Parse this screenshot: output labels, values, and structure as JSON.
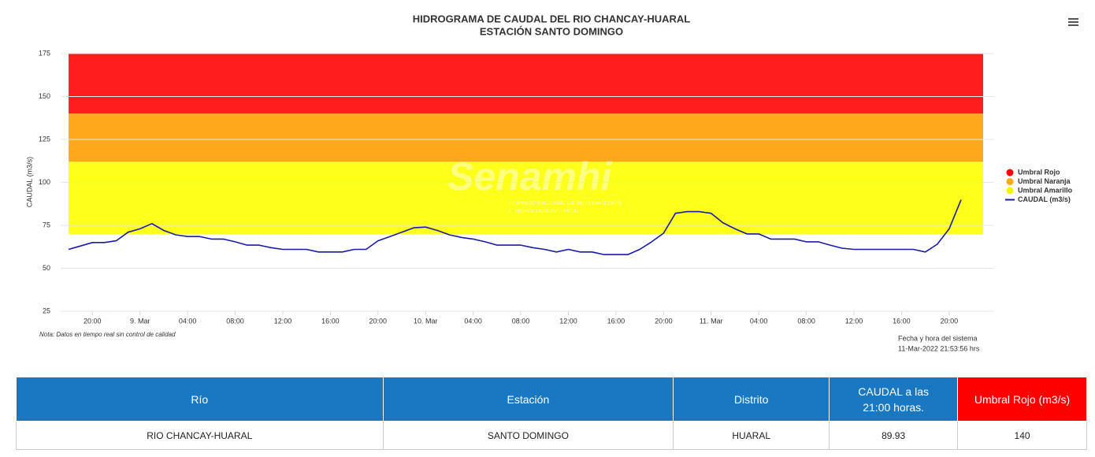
{
  "chart_data": {
    "type": "line",
    "title": "HIDROGRAMA DE CAUDAL DEL RIO CHANCAY-HUARAL",
    "subtitle": "ESTACIÓN SANTO DOMINGO",
    "y_label": "CAUDAL (m3/s)",
    "watermark": "Senamhi",
    "watermark_subtitle": [
      "SERVICIO NACIONAL DE METEOROLOGÍA",
      "E HIDROLOGÍA DEL PERÚ"
    ],
    "note": "Nota: Datos en tiempo real sin control de calidad",
    "system_time": [
      "Fecha y hora del sistema",
      "11-Mar-2022 21:53:56 hrs"
    ],
    "ylim": [
      25,
      175
    ],
    "yticks": [
      25,
      50,
      75,
      100,
      125,
      150,
      175
    ],
    "grid": true,
    "xlim": [
      "2022-03-08T17:20",
      "2022-03-11T23:47"
    ],
    "xticks": [
      {
        "value": "2022-03-08T20:00",
        "label": "20:00"
      },
      {
        "value": "2022-03-09T00:00",
        "label": "9. Mar"
      },
      {
        "value": "2022-03-09T04:00",
        "label": "04:00"
      },
      {
        "value": "2022-03-09T08:00",
        "label": "08:00"
      },
      {
        "value": "2022-03-09T12:00",
        "label": "12:00"
      },
      {
        "value": "2022-03-09T16:00",
        "label": "16:00"
      },
      {
        "value": "2022-03-09T20:00",
        "label": "20:00"
      },
      {
        "value": "2022-03-10T00:00",
        "label": "10. Mar"
      },
      {
        "value": "2022-03-10T04:00",
        "label": "04:00"
      },
      {
        "value": "2022-03-10T08:00",
        "label": "08:00"
      },
      {
        "value": "2022-03-10T12:00",
        "label": "12:00"
      },
      {
        "value": "2022-03-10T16:00",
        "label": "16:00"
      },
      {
        "value": "2022-03-10T20:00",
        "label": "20:00"
      },
      {
        "value": "2022-03-11T00:00",
        "label": "11. Mar"
      },
      {
        "value": "2022-03-11T04:00",
        "label": "04:00"
      },
      {
        "value": "2022-03-11T08:00",
        "label": "08:00"
      },
      {
        "value": "2022-03-11T12:00",
        "label": "12:00"
      },
      {
        "value": "2022-03-11T16:00",
        "label": "16:00"
      },
      {
        "value": "2022-03-11T20:00",
        "label": "20:00"
      }
    ],
    "thresholds": [
      {
        "name": "Umbral Rojo",
        "color": "#ff1c1c",
        "value": 140
      },
      {
        "name": "Umbral Naranja",
        "color": "#ffa81c",
        "value": 112
      },
      {
        "name": "Umbral Amarillo",
        "color": "#ffff1c",
        "value": 70
      }
    ],
    "x": [
      "2022-03-08T18:00",
      "2022-03-08T19:00",
      "2022-03-08T20:00",
      "2022-03-08T21:00",
      "2022-03-08T22:00",
      "2022-03-08T23:00",
      "2022-03-09T00:00",
      "2022-03-09T01:00",
      "2022-03-09T02:00",
      "2022-03-09T03:00",
      "2022-03-09T04:00",
      "2022-03-09T05:00",
      "2022-03-09T06:00",
      "2022-03-09T07:00",
      "2022-03-09T08:00",
      "2022-03-09T09:00",
      "2022-03-09T10:00",
      "2022-03-09T11:00",
      "2022-03-09T12:00",
      "2022-03-09T13:00",
      "2022-03-09T14:00",
      "2022-03-09T15:00",
      "2022-03-09T16:00",
      "2022-03-09T17:00",
      "2022-03-09T18:00",
      "2022-03-09T19:00",
      "2022-03-09T20:00",
      "2022-03-09T21:00",
      "2022-03-09T22:00",
      "2022-03-09T23:00",
      "2022-03-10T00:00",
      "2022-03-10T01:00",
      "2022-03-10T02:00",
      "2022-03-10T03:00",
      "2022-03-10T04:00",
      "2022-03-10T05:00",
      "2022-03-10T06:00",
      "2022-03-10T07:00",
      "2022-03-10T08:00",
      "2022-03-10T09:00",
      "2022-03-10T10:00",
      "2022-03-10T11:00",
      "2022-03-10T12:00",
      "2022-03-10T13:00",
      "2022-03-10T14:00",
      "2022-03-10T15:00",
      "2022-03-10T16:00",
      "2022-03-10T17:00",
      "2022-03-10T18:00",
      "2022-03-10T19:00",
      "2022-03-10T20:00",
      "2022-03-10T21:00",
      "2022-03-10T22:00",
      "2022-03-10T23:00",
      "2022-03-11T00:00",
      "2022-03-11T01:00",
      "2022-03-11T02:00",
      "2022-03-11T03:00",
      "2022-03-11T04:00",
      "2022-03-11T05:00",
      "2022-03-11T06:00",
      "2022-03-11T07:00",
      "2022-03-11T08:00",
      "2022-03-11T09:00",
      "2022-03-11T10:00",
      "2022-03-11T11:00",
      "2022-03-11T12:00",
      "2022-03-11T13:00",
      "2022-03-11T14:00",
      "2022-03-11T15:00",
      "2022-03-11T16:00",
      "2022-03-11T17:00",
      "2022-03-11T18:00",
      "2022-03-11T19:00",
      "2022-03-11T20:00",
      "2022-03-11T21:00"
    ],
    "series": [
      {
        "name": "CAUDAL (m3/s)",
        "color": "#1a1aa8",
        "values": [
          61,
          63,
          65,
          65,
          66,
          71,
          73,
          76,
          72,
          69.5,
          68.5,
          68.5,
          67,
          67,
          65.4,
          63.5,
          63.5,
          62,
          61,
          61,
          61,
          59.5,
          59.5,
          59.5,
          61,
          61,
          66,
          68.5,
          71,
          73.6,
          74,
          72,
          69.5,
          68,
          67,
          65.4,
          63.5,
          63.5,
          63.5,
          62,
          61,
          59.5,
          61,
          59.5,
          59.5,
          58,
          58,
          58,
          61,
          65.4,
          70.4,
          82,
          83,
          83,
          82,
          76.4,
          73,
          70,
          70,
          67,
          67,
          67,
          65.4,
          65.4,
          63.5,
          61.7,
          61,
          61,
          61,
          61,
          61,
          61,
          59.5,
          64,
          73,
          89.93
        ]
      }
    ]
  },
  "table": {
    "header": [
      "Río",
      "Estación",
      "Distrito",
      "CAUDAL a las 21:00 horas.",
      "Umbral Rojo (m3/s)"
    ],
    "rows": [
      [
        "RIO CHANCAY-HUARAL",
        "SANTO DOMINGO",
        "HUARAL",
        "89.93",
        "140"
      ]
    ]
  }
}
